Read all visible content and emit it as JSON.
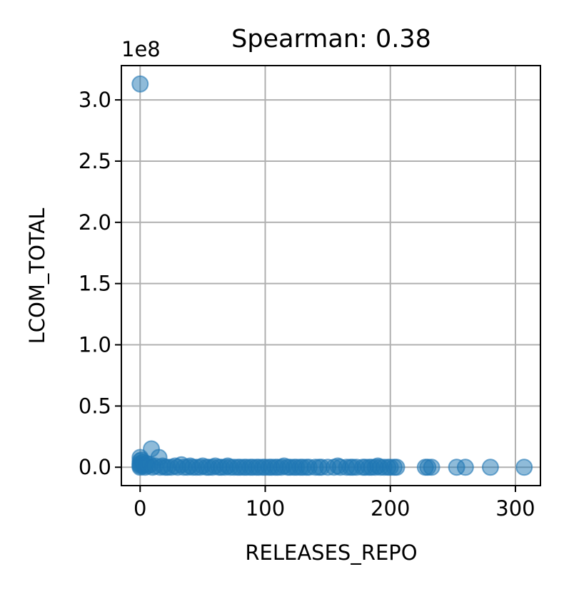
{
  "chart_data": {
    "type": "scatter",
    "title": "Spearman: 0.38",
    "xlabel": "RELEASES_REPO",
    "ylabel": "LCOM_TOTAL",
    "offset_text": "1e8",
    "xlim": [
      -15,
      320
    ],
    "ylim": [
      -0.15,
      3.28
    ],
    "y_scale_note": "values in units of 1e8",
    "xticks": [
      0,
      100,
      200,
      300
    ],
    "xtick_labels": [
      "0",
      "100",
      "200",
      "300"
    ],
    "yticks": [
      0.0,
      0.5,
      1.0,
      1.5,
      2.0,
      2.5,
      3.0
    ],
    "ytick_labels": [
      "0.0",
      "0.5",
      "1.0",
      "1.5",
      "2.0",
      "2.5",
      "3.0"
    ],
    "grid": true,
    "marker_color": "#1f77b4",
    "marker_alpha": 0.5,
    "series": [
      {
        "points": [
          [
            0,
            3.13
          ],
          [
            0,
            0.08
          ],
          [
            0,
            0.05
          ],
          [
            0,
            0.03
          ],
          [
            0,
            0.02
          ],
          [
            0,
            0.01
          ],
          [
            0,
            0.0
          ],
          [
            1,
            0.06
          ],
          [
            2,
            0.04
          ],
          [
            2,
            0.01
          ],
          [
            3,
            0.02
          ],
          [
            4,
            0.0
          ],
          [
            5,
            0.03
          ],
          [
            6,
            0.01
          ],
          [
            8,
            0.02
          ],
          [
            9,
            0.15
          ],
          [
            10,
            0.0
          ],
          [
            12,
            0.01
          ],
          [
            15,
            0.08
          ],
          [
            16,
            0.0
          ],
          [
            18,
            0.01
          ],
          [
            20,
            0.0
          ],
          [
            22,
            0.0
          ],
          [
            25,
            0.0
          ],
          [
            28,
            0.01
          ],
          [
            30,
            0.0
          ],
          [
            33,
            0.02
          ],
          [
            35,
            0.0
          ],
          [
            38,
            0.0
          ],
          [
            40,
            0.01
          ],
          [
            42,
            0.0
          ],
          [
            45,
            0.0
          ],
          [
            48,
            0.0
          ],
          [
            50,
            0.01
          ],
          [
            53,
            0.0
          ],
          [
            55,
            0.0
          ],
          [
            58,
            0.0
          ],
          [
            60,
            0.01
          ],
          [
            63,
            0.0
          ],
          [
            65,
            0.0
          ],
          [
            68,
            0.0
          ],
          [
            70,
            0.01
          ],
          [
            72,
            0.0
          ],
          [
            75,
            0.0
          ],
          [
            78,
            0.0
          ],
          [
            80,
            0.0
          ],
          [
            83,
            0.0
          ],
          [
            85,
            0.0
          ],
          [
            88,
            0.0
          ],
          [
            90,
            0.0
          ],
          [
            93,
            0.0
          ],
          [
            95,
            0.0
          ],
          [
            98,
            0.0
          ],
          [
            100,
            0.0
          ],
          [
            103,
            0.0
          ],
          [
            105,
            0.0
          ],
          [
            108,
            0.0
          ],
          [
            110,
            0.0
          ],
          [
            113,
            0.0
          ],
          [
            115,
            0.01
          ],
          [
            118,
            0.0
          ],
          [
            120,
            0.0
          ],
          [
            123,
            0.0
          ],
          [
            125,
            0.0
          ],
          [
            128,
            0.0
          ],
          [
            130,
            0.0
          ],
          [
            133,
            0.0
          ],
          [
            135,
            0.0
          ],
          [
            140,
            0.0
          ],
          [
            143,
            0.0
          ],
          [
            145,
            0.0
          ],
          [
            150,
            0.0
          ],
          [
            155,
            0.0
          ],
          [
            158,
            0.01
          ],
          [
            160,
            0.0
          ],
          [
            165,
            0.0
          ],
          [
            168,
            0.0
          ],
          [
            170,
            0.0
          ],
          [
            173,
            0.0
          ],
          [
            178,
            0.0
          ],
          [
            180,
            0.0
          ],
          [
            183,
            0.0
          ],
          [
            185,
            0.0
          ],
          [
            188,
            0.0
          ],
          [
            190,
            0.01
          ],
          [
            192,
            0.0
          ],
          [
            195,
            0.0
          ],
          [
            198,
            0.0
          ],
          [
            200,
            0.0
          ],
          [
            203,
            0.0
          ],
          [
            205,
            0.0
          ],
          [
            228,
            0.0
          ],
          [
            230,
            0.0
          ],
          [
            233,
            0.0
          ],
          [
            253,
            0.0
          ],
          [
            260,
            0.0
          ],
          [
            280,
            0.0
          ],
          [
            307,
            0.0
          ]
        ]
      }
    ]
  }
}
